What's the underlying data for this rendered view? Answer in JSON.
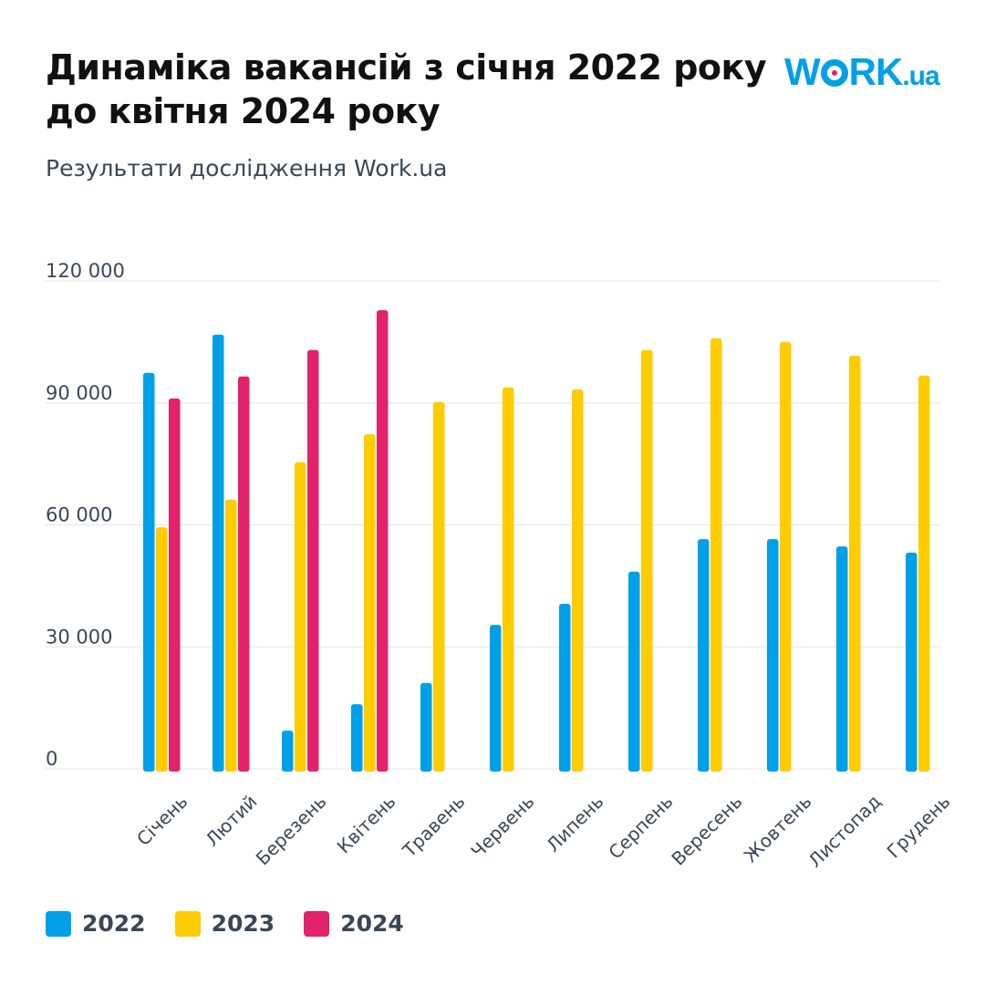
{
  "header": {
    "title": "Динаміка вакансій з січня 2022 року до квітня 2024 року",
    "subtitle": "Результати дослідження Work.ua",
    "logo": "WORK.ua"
  },
  "colors": {
    "2022": "#00a0e9",
    "2023": "#ffcc00",
    "2024": "#e2226a",
    "grid": "#e6e6e6",
    "text": "#3b4756"
  },
  "chart_data": {
    "type": "bar",
    "title": "Динаміка вакансій з січня 2022 року до квітня 2024 року",
    "xlabel": "",
    "ylabel": "",
    "ylim": [
      0,
      120000
    ],
    "yticks": [
      0,
      30000,
      60000,
      90000,
      120000
    ],
    "ytick_labels": [
      "0",
      "30 000",
      "60 000",
      "90 000",
      "120 000"
    ],
    "grid": true,
    "legend_position": "bottom-left",
    "categories": [
      "Січень",
      "Лютий",
      "Березень",
      "Квітень",
      "Травень",
      "Червень",
      "Липень",
      "Серпень",
      "Вересень",
      "Жовтень",
      "Листопад",
      "Грудень"
    ],
    "series": [
      {
        "name": "2022",
        "values": [
          97400,
          106800,
          9400,
          15900,
          21100,
          35400,
          40600,
          48500,
          56500,
          56500,
          54700,
          53200
        ]
      },
      {
        "name": "2023",
        "values": [
          59400,
          66200,
          75400,
          82300,
          90200,
          93800,
          93300,
          103000,
          105900,
          105000,
          101600,
          96700
        ]
      },
      {
        "name": "2024",
        "values": [
          91100,
          96500,
          103000,
          112800,
          null,
          null,
          null,
          null,
          null,
          null,
          null,
          null
        ]
      }
    ]
  }
}
